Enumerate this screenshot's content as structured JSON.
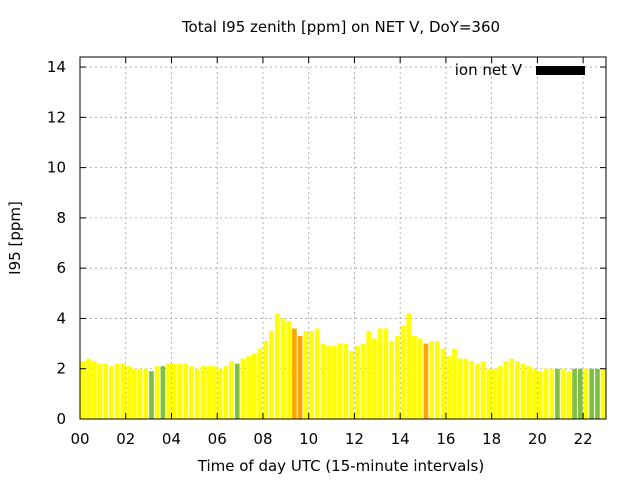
{
  "chart_data": {
    "type": "bar",
    "title": "Total I95 zenith [ppm] on NET V, DoY=360",
    "xlabel": "Time of day UTC (15-minute intervals)",
    "ylabel": "I95 [ppm]",
    "xlim": [
      0,
      23
    ],
    "ylim": [
      0,
      14.4
    ],
    "x_ticks": [
      "00",
      "02",
      "04",
      "06",
      "08",
      "10",
      "12",
      "14",
      "16",
      "18",
      "20",
      "22"
    ],
    "y_ticks": [
      "0",
      "2",
      "4",
      "6",
      "8",
      "10",
      "12",
      "14"
    ],
    "grid": true,
    "legend": {
      "position": "top-right",
      "label": "ion net V",
      "color": "#000000"
    },
    "colors": {
      "yellow": "#ffff00",
      "green": "#80c040",
      "orange": "#ffa500"
    },
    "interval_hours": 0.25,
    "values": [
      2.3,
      2.4,
      2.3,
      2.2,
      2.2,
      2.1,
      2.2,
      2.2,
      2.1,
      2.0,
      2.0,
      2.0,
      1.9,
      2.1,
      2.1,
      2.2,
      2.2,
      2.2,
      2.2,
      2.1,
      2.0,
      2.1,
      2.1,
      2.1,
      2.0,
      2.1,
      2.3,
      2.2,
      2.4,
      2.5,
      2.6,
      2.8,
      3.1,
      3.5,
      4.2,
      4.0,
      3.9,
      3.6,
      3.3,
      3.5,
      3.5,
      3.6,
      3.0,
      2.9,
      2.9,
      3.0,
      3.0,
      2.7,
      2.9,
      3.0,
      3.5,
      3.2,
      3.6,
      3.6,
      3.1,
      3.3,
      3.7,
      4.2,
      3.3,
      3.2,
      3.0,
      3.1,
      3.1,
      2.8,
      2.5,
      2.8,
      2.4,
      2.4,
      2.3,
      2.2,
      2.3,
      2.0,
      2.0,
      2.1,
      2.3,
      2.4,
      2.3,
      2.2,
      2.1,
      2.0,
      1.9,
      2.0,
      2.0,
      2.0,
      2.0,
      1.9,
      2.0,
      2.0,
      2.0,
      2.0,
      2.0,
      2.0
    ],
    "bar_colors": [
      "yellow",
      "yellow",
      "yellow",
      "yellow",
      "yellow",
      "yellow",
      "yellow",
      "yellow",
      "yellow",
      "yellow",
      "yellow",
      "yellow",
      "green",
      "yellow",
      "green",
      "yellow",
      "yellow",
      "yellow",
      "yellow",
      "yellow",
      "yellow",
      "yellow",
      "yellow",
      "yellow",
      "yellow",
      "yellow",
      "yellow",
      "green",
      "yellow",
      "yellow",
      "yellow",
      "yellow",
      "yellow",
      "yellow",
      "yellow",
      "yellow",
      "yellow",
      "orange",
      "orange",
      "yellow",
      "yellow",
      "yellow",
      "yellow",
      "yellow",
      "yellow",
      "yellow",
      "yellow",
      "yellow",
      "yellow",
      "yellow",
      "yellow",
      "yellow",
      "yellow",
      "yellow",
      "yellow",
      "yellow",
      "yellow",
      "yellow",
      "yellow",
      "yellow",
      "orange",
      "yellow",
      "yellow",
      "yellow",
      "yellow",
      "yellow",
      "yellow",
      "yellow",
      "yellow",
      "yellow",
      "yellow",
      "yellow",
      "yellow",
      "yellow",
      "yellow",
      "yellow",
      "yellow",
      "yellow",
      "yellow",
      "yellow",
      "yellow",
      "yellow",
      "yellow",
      "green",
      "yellow",
      "yellow",
      "green",
      "green",
      "yellow",
      "green",
      "green",
      "yellow"
    ]
  }
}
